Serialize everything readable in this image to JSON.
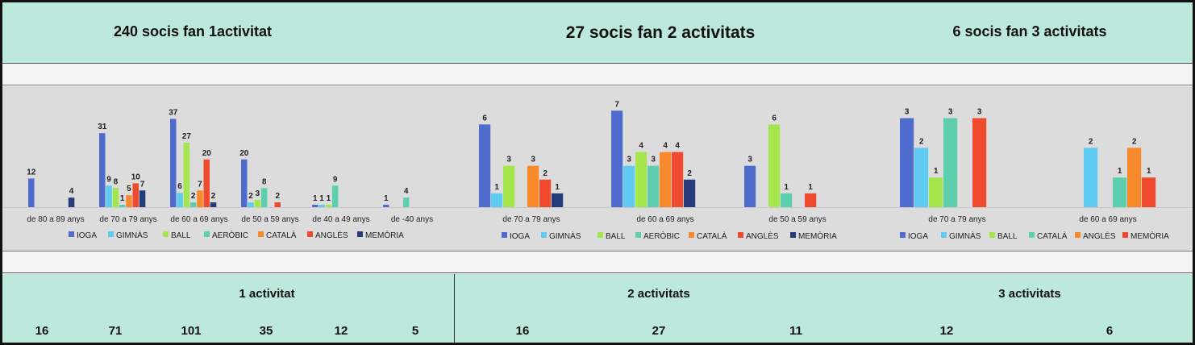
{
  "header": {
    "title_1": "240 socis fan 1activitat",
    "title_2": "27 socis fan 2 activitats",
    "title_3": "6 socis fan 3 activitats"
  },
  "footer": {
    "groups": [
      {
        "title": "1 activitat",
        "totals": [
          "16",
          "71",
          "101",
          "35",
          "12",
          "5"
        ]
      },
      {
        "title": "2 activitats",
        "totals": [
          "16",
          "27",
          "11"
        ]
      },
      {
        "title": "3 activitats",
        "totals": [
          "12",
          "6"
        ]
      }
    ]
  },
  "chart_data": [
    {
      "type": "bar",
      "categories": [
        "de 80 a 89 anys",
        "de 70 a 79 anys",
        "de 60 a 69 anys",
        "de 50 a 59 anys",
        "de 40 a 49 anys",
        "de -40 anys"
      ],
      "series": [
        {
          "name": "IOGA",
          "color": "#4e6bcd",
          "values": [
            12,
            31,
            37,
            20,
            1,
            1
          ]
        },
        {
          "name": "GIMNÀS",
          "color": "#5fcbf2",
          "values": [
            null,
            9,
            6,
            2,
            1,
            null
          ]
        },
        {
          "name": "BALL",
          "color": "#a6e64d",
          "values": [
            null,
            8,
            27,
            3,
            1,
            null
          ]
        },
        {
          "name": "AERÒBIC",
          "color": "#5dcfae",
          "values": [
            null,
            1,
            2,
            8,
            9,
            4
          ]
        },
        {
          "name": "CATALÀ",
          "color": "#f98a2c",
          "values": [
            null,
            5,
            7,
            null,
            null,
            null
          ]
        },
        {
          "name": "ANGLÈS",
          "color": "#f04a2e",
          "values": [
            null,
            10,
            20,
            2,
            null,
            null
          ]
        },
        {
          "name": "MEMÒRIA",
          "color": "#253b7a",
          "values": [
            4,
            7,
            2,
            null,
            null,
            null
          ]
        }
      ],
      "ylim": [
        0,
        40
      ],
      "legend": "bottom"
    },
    {
      "type": "bar",
      "categories": [
        "de 70 a 79 anys",
        "de 60 a 69 anys",
        "de 50 a 59 anys"
      ],
      "series": [
        {
          "name": "IOGA",
          "color": "#4e6bcd",
          "values": [
            6,
            7,
            3
          ]
        },
        {
          "name": "GIMNÀS",
          "color": "#5fcbf2",
          "values": [
            1,
            3,
            null
          ]
        },
        {
          "name": "BALL",
          "color": "#a6e64d",
          "values": [
            3,
            4,
            6
          ]
        },
        {
          "name": "AERÒBIC",
          "color": "#5dcfae",
          "values": [
            null,
            3,
            1
          ]
        },
        {
          "name": "CATALÀ",
          "color": "#f98a2c",
          "values": [
            3,
            4,
            null
          ]
        },
        {
          "name": "ANGLÈS",
          "color": "#f04a2e",
          "values": [
            2,
            4,
            1
          ]
        },
        {
          "name": "MEMÒRIA",
          "color": "#253b7a",
          "values": [
            1,
            2,
            null
          ]
        }
      ],
      "ylim": [
        0,
        8
      ],
      "legend": "bottom"
    },
    {
      "type": "bar",
      "categories": [
        "de 70 a 79 anys",
        "de 60 a 69 anys"
      ],
      "series": [
        {
          "name": "IOGA",
          "color": "#4e6bcd",
          "values": [
            3,
            null
          ]
        },
        {
          "name": "GIMNÀS",
          "color": "#5fcbf2",
          "values": [
            2,
            2
          ]
        },
        {
          "name": "BALL",
          "color": "#a6e64d",
          "values": [
            1,
            null
          ]
        },
        {
          "name": "CATALÀ",
          "color": "#5dcfae",
          "values": [
            3,
            1
          ]
        },
        {
          "name": "ANGLÈS",
          "color": "#f98a2c",
          "values": [
            null,
            2
          ]
        },
        {
          "name": "MEMÒRIA",
          "color": "#f04a2e",
          "values": [
            3,
            1
          ]
        }
      ],
      "ylim": [
        0,
        4
      ],
      "legend": "bottom"
    }
  ]
}
